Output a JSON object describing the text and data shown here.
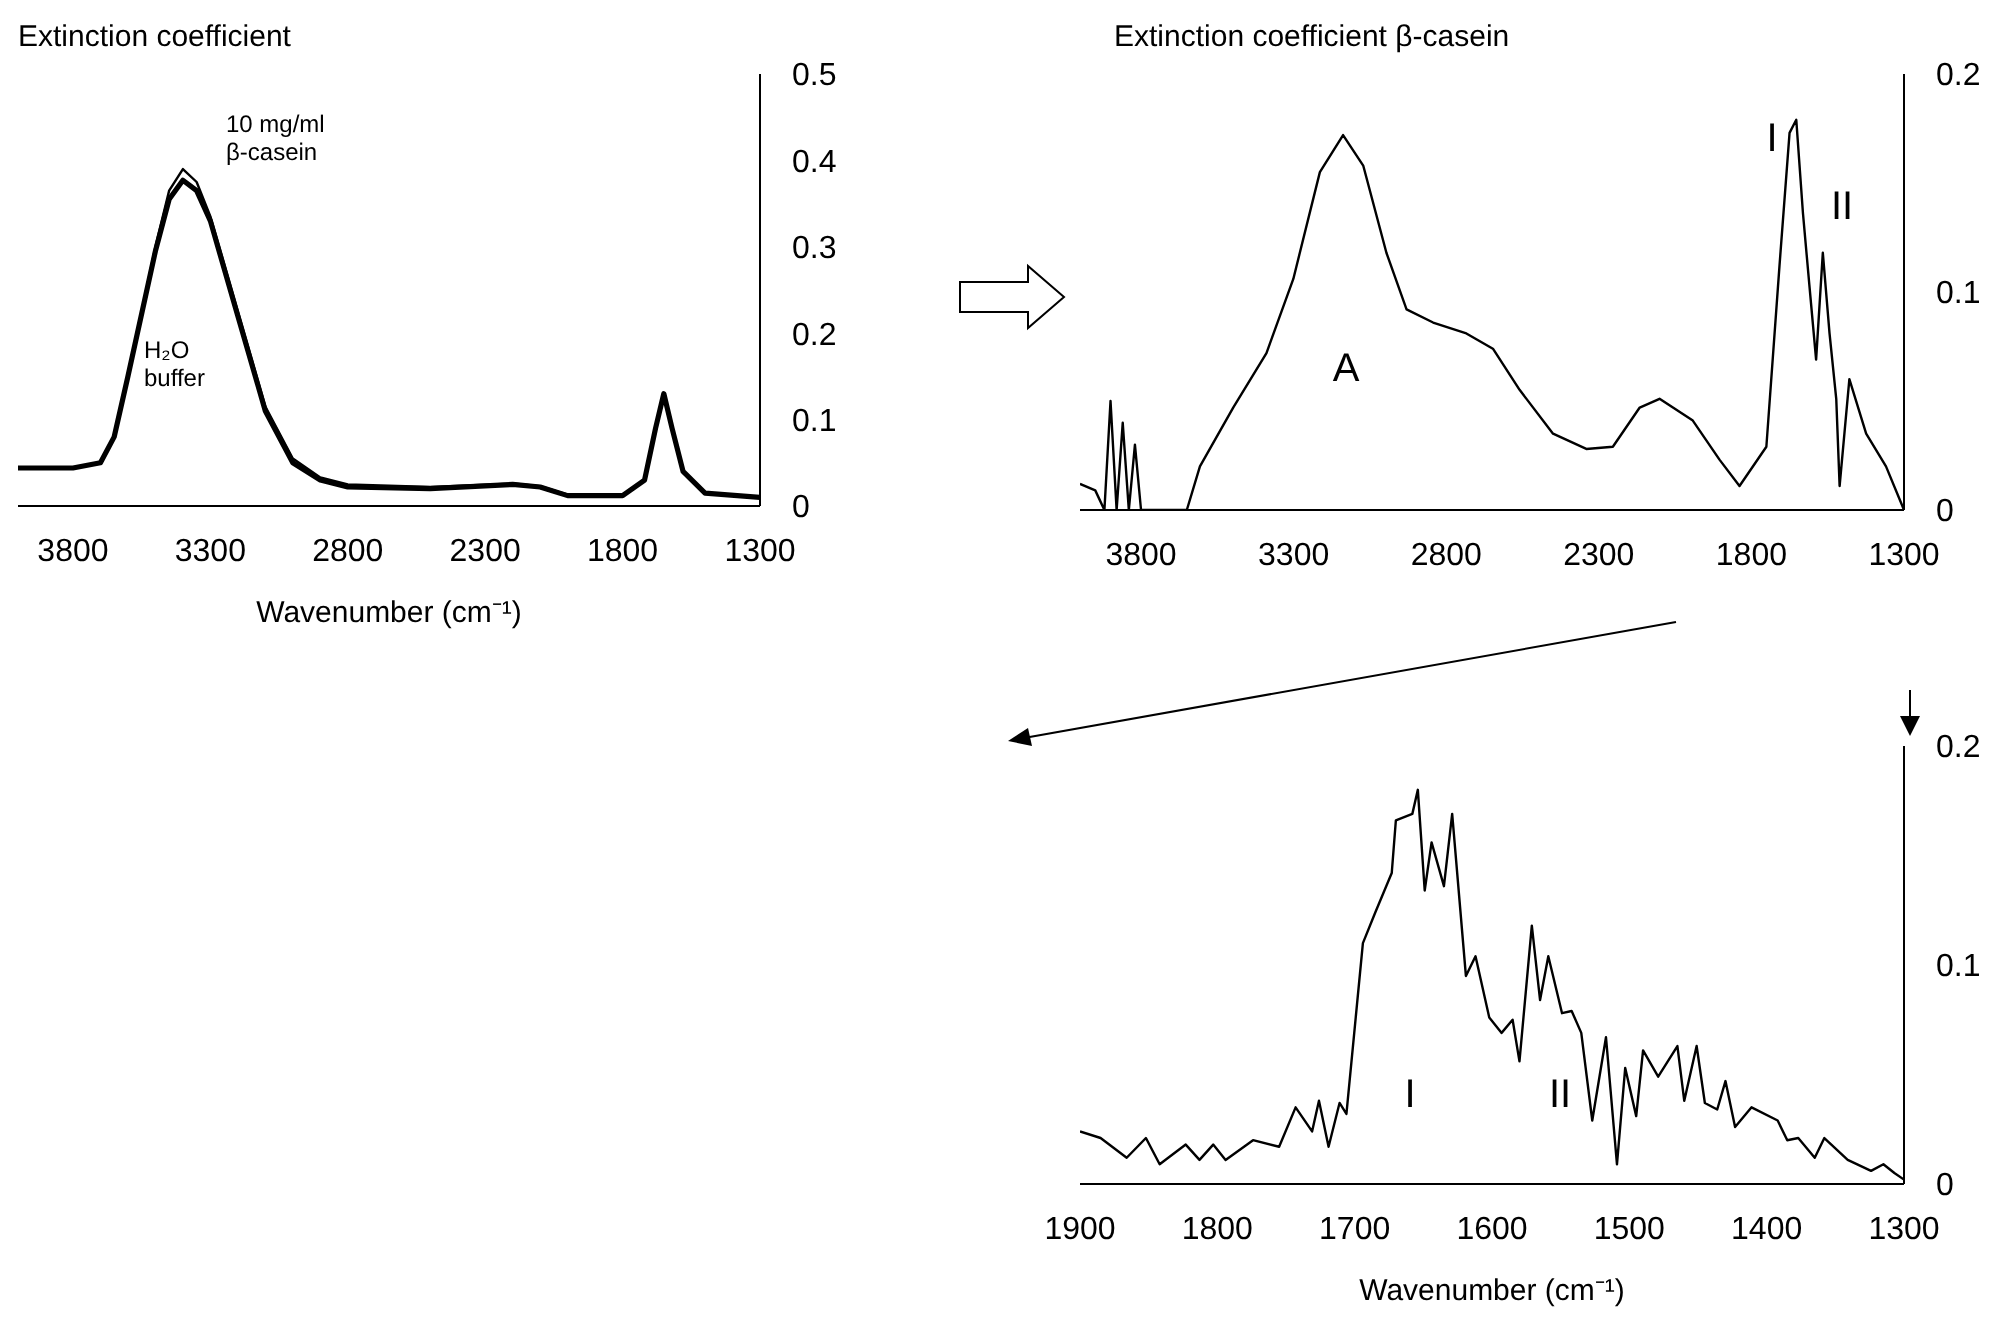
{
  "chart_data": [
    {
      "type": "line",
      "title": "Extinction coefficient",
      "xlabel": "Wavenumber (cm⁻¹)",
      "xlim": [
        4000,
        1300
      ],
      "xticks": [
        3800,
        3300,
        2800,
        2300,
        1800,
        1300
      ],
      "ylim": [
        0,
        0.5
      ],
      "yticks": [
        0,
        0.1,
        0.2,
        0.3,
        0.4,
        0.5
      ],
      "grid": false,
      "legend": false,
      "x": [
        4000,
        3800,
        3700,
        3650,
        3600,
        3500,
        3450,
        3400,
        3350,
        3300,
        3200,
        3100,
        3000,
        2900,
        2800,
        2500,
        2200,
        2100,
        2000,
        1800,
        1720,
        1680,
        1650,
        1620,
        1580,
        1500,
        1300
      ],
      "series": [
        {
          "name": "10 mg/ml β-casein",
          "color": "#000000",
          "values": [
            0.044,
            0.044,
            0.05,
            0.08,
            0.15,
            0.3,
            0.365,
            0.39,
            0.375,
            0.335,
            0.225,
            0.115,
            0.055,
            0.033,
            0.025,
            0.022,
            0.026,
            0.023,
            0.013,
            0.012,
            0.03,
            0.09,
            0.13,
            0.09,
            0.04,
            0.015,
            0.01
          ]
        },
        {
          "name": "H₂O buffer",
          "color": "#000000",
          "values": [
            0.044,
            0.044,
            0.05,
            0.08,
            0.15,
            0.295,
            0.355,
            0.377,
            0.365,
            0.33,
            0.22,
            0.11,
            0.05,
            0.03,
            0.022,
            0.02,
            0.025,
            0.022,
            0.012,
            0.012,
            0.03,
            0.09,
            0.13,
            0.09,
            0.04,
            0.015,
            0.01
          ]
        }
      ]
    },
    {
      "type": "line",
      "title": "Extinction coefficient β-casein",
      "xlim": [
        4000,
        1300
      ],
      "xticks": [
        3800,
        3300,
        2800,
        2300,
        1800,
        1300
      ],
      "ylim": [
        0,
        0.2
      ],
      "yticks": [
        0,
        0.1,
        0.2
      ],
      "grid": false,
      "legend": false,
      "x": [
        4000,
        3950,
        3920,
        3900,
        3880,
        3860,
        3840,
        3820,
        3800,
        3750,
        3700,
        3650,
        3607,
        3498,
        3389,
        3301,
        3214,
        3138,
        3072,
        2996,
        2930,
        2843,
        2734,
        2647,
        2559,
        2450,
        2341,
        2254,
        2166,
        2101,
        1992,
        1904,
        1839,
        1751,
        1708,
        1675,
        1653,
        1631,
        1610,
        1588,
        1566,
        1544,
        1522,
        1511,
        1479,
        1424,
        1359,
        1300
      ],
      "series": [
        {
          "color": "#000000",
          "values": [
            0.012,
            0.009,
            0.0,
            0.05,
            0.0,
            0.04,
            0.0,
            0.03,
            0.0,
            0.0,
            0.0,
            0.0,
            0.02,
            0.047,
            0.072,
            0.106,
            0.155,
            0.172,
            0.158,
            0.118,
            0.092,
            0.086,
            0.081,
            0.074,
            0.055,
            0.035,
            0.028,
            0.029,
            0.047,
            0.051,
            0.041,
            0.023,
            0.011,
            0.029,
            0.112,
            0.173,
            0.179,
            0.136,
            0.103,
            0.069,
            0.118,
            0.081,
            0.051,
            0.011,
            0.06,
            0.035,
            0.02,
            0.0
          ]
        }
      ],
      "annotations": [
        "A",
        "I",
        "II"
      ]
    },
    {
      "type": "line",
      "xlabel": "Wavenumber (cm⁻¹)",
      "xlim": [
        1900,
        1300
      ],
      "xticks": [
        1900,
        1800,
        1700,
        1600,
        1500,
        1400,
        1300
      ],
      "ylim": [
        0,
        0.2
      ],
      "yticks": [
        0,
        0.1,
        0.2
      ],
      "grid": false,
      "legend": false,
      "x": [
        1900,
        1885,
        1866,
        1852,
        1842,
        1823,
        1813,
        1803,
        1794,
        1774,
        1755,
        1743,
        1731,
        1726,
        1719,
        1711,
        1706,
        1694,
        1685,
        1673,
        1670,
        1658,
        1654,
        1649,
        1644,
        1635,
        1629,
        1619,
        1612,
        1602,
        1593,
        1585,
        1580,
        1571,
        1565,
        1559,
        1549,
        1542,
        1535,
        1527,
        1517,
        1509,
        1503,
        1495,
        1490,
        1479,
        1465,
        1460,
        1451,
        1445,
        1436,
        1430,
        1423,
        1411,
        1392,
        1385,
        1377,
        1365,
        1358,
        1341,
        1324,
        1315,
        1307,
        1300
      ],
      "series": [
        {
          "color": "#000000",
          "values": [
            0.024,
            0.021,
            0.012,
            0.021,
            0.009,
            0.018,
            0.011,
            0.018,
            0.011,
            0.02,
            0.017,
            0.035,
            0.024,
            0.038,
            0.017,
            0.037,
            0.032,
            0.11,
            0.124,
            0.142,
            0.166,
            0.169,
            0.18,
            0.134,
            0.156,
            0.136,
            0.169,
            0.095,
            0.104,
            0.076,
            0.069,
            0.075,
            0.056,
            0.118,
            0.084,
            0.104,
            0.078,
            0.079,
            0.069,
            0.029,
            0.067,
            0.009,
            0.053,
            0.031,
            0.061,
            0.049,
            0.063,
            0.038,
            0.063,
            0.037,
            0.034,
            0.047,
            0.026,
            0.035,
            0.029,
            0.02,
            0.021,
            0.012,
            0.021,
            0.011,
            0.006,
            0.009,
            0.005,
            0.002
          ]
        }
      ],
      "annotations": [
        "I",
        "II"
      ]
    }
  ]
}
